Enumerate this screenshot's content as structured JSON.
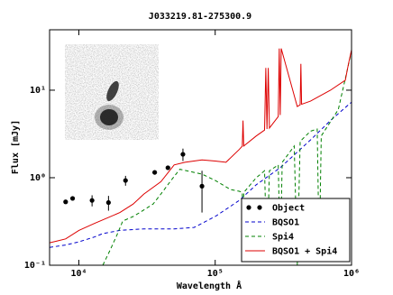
{
  "chart_data": {
    "type": "line",
    "title": "J033219.81-275300.9",
    "xlabel": "Wavelength Å",
    "ylabel": "Flux [mJy]",
    "xscale": "log",
    "yscale": "log",
    "xlim": [
      6100,
      1000000
    ],
    "ylim": [
      0.1,
      49
    ],
    "xticks": [
      {
        "value": 10000,
        "label": "10⁴"
      },
      {
        "value": 100000,
        "label": "10⁵"
      },
      {
        "value": 1000000,
        "label": "10⁶"
      }
    ],
    "yticks": [
      {
        "value": 0.1,
        "label": "10⁻¹"
      },
      {
        "value": 1,
        "label": "10⁰"
      },
      {
        "value": 10,
        "label": "10¹"
      }
    ],
    "legend": "lower right",
    "series": [
      {
        "name": "Object",
        "color": "#000000",
        "style": "points",
        "x": [
          8000,
          9000,
          12500,
          16500,
          22000,
          36000,
          45000,
          58000,
          80000
        ],
        "values": [
          0.53,
          0.58,
          0.55,
          0.52,
          0.93,
          1.15,
          1.3,
          1.85,
          0.8
        ],
        "errors": [
          null,
          null,
          0.08,
          0.1,
          0.12,
          null,
          null,
          0.3,
          0.4
        ]
      },
      {
        "name": "BQSO1",
        "color": "#0000cc",
        "style": "dashed",
        "x": [
          6100,
          8000,
          10000,
          13000,
          15000,
          20000,
          30000,
          50000,
          70000,
          100000,
          150000,
          200000,
          300000,
          500000,
          700000,
          1000000
        ],
        "values": [
          0.16,
          0.17,
          0.185,
          0.21,
          0.23,
          0.25,
          0.26,
          0.26,
          0.27,
          0.36,
          0.55,
          0.83,
          1.3,
          2.7,
          4.5,
          7.3
        ]
      },
      {
        "name": "Spi4",
        "color": "#008000",
        "style": "dashed",
        "x": [
          15000,
          17000,
          19000,
          21000,
          25000,
          28000,
          35000,
          40000,
          48000,
          55000,
          70000,
          80000,
          100000,
          130000,
          150000,
          158000,
          160000,
          162000,
          165000,
          200000,
          230000,
          240000,
          250000,
          290000,
          300000,
          310000,
          380000,
          400000,
          420000,
          500000,
          560000,
          580000,
          600000,
          800000,
          1000000
        ],
        "values": [
          0.1,
          0.15,
          0.22,
          0.32,
          0.36,
          0.4,
          0.5,
          0.65,
          0.95,
          1.25,
          1.15,
          1.1,
          0.93,
          0.73,
          0.7,
          0.68,
          0.11,
          0.68,
          0.7,
          1.0,
          1.2,
          0.11,
          1.2,
          1.4,
          0.12,
          1.5,
          2.3,
          0.1,
          2.6,
          3.4,
          3.6,
          0.12,
          3.0,
          6,
          28
        ]
      },
      {
        "name": "BQSO1 + Spi4",
        "color": "#dd0000",
        "style": "solid",
        "x": [
          6100,
          7000,
          8000,
          10000,
          13000,
          15000,
          20000,
          25000,
          30000,
          40000,
          50000,
          60000,
          80000,
          100000,
          120000,
          150000,
          158000,
          160000,
          162000,
          200000,
          230000,
          235000,
          240000,
          245000,
          250000,
          290000,
          295000,
          300000,
          305000,
          400000,
          420000,
          425000,
          430000,
          500000,
          700000,
          900000,
          950000,
          1000000
        ],
        "values": [
          0.18,
          0.19,
          0.2,
          0.25,
          0.3,
          0.33,
          0.4,
          0.5,
          0.65,
          0.9,
          1.4,
          1.5,
          1.6,
          1.55,
          1.5,
          2.1,
          2.3,
          4.5,
          2.3,
          3.0,
          3.5,
          18,
          3.6,
          18,
          3.7,
          5,
          30,
          5.2,
          30,
          6.5,
          6.8,
          20,
          6.9,
          7.5,
          10,
          13,
          20,
          29
        ]
      }
    ]
  }
}
